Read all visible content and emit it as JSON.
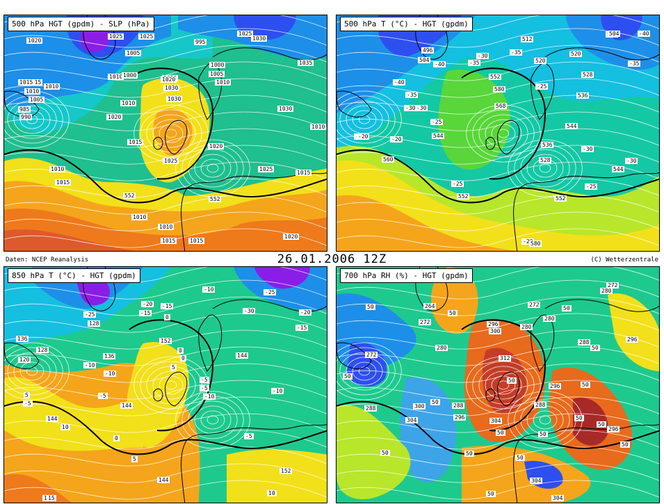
{
  "date_label": "26.01.2006  12Z",
  "source_label": "Daten: NCEP Reanalysis",
  "copyright_label": "(C) Wetterzentrale",
  "panels": [
    {
      "title": "500 hPa HGT (gpdm) - SLP (hPa)",
      "palette": "height",
      "labels": [
        "1020",
        "1025",
        "1005",
        "995",
        "1030",
        "1025",
        "1010",
        "1015",
        "1010",
        "1005",
        "1000",
        "1030",
        "1035",
        "1020",
        "1010",
        "1015",
        "1020",
        "1030",
        "1025",
        "1030",
        "1010",
        "1015",
        "1025",
        "1015",
        "1010",
        "1010",
        "1015",
        "552",
        "552",
        "1010",
        "1015",
        "1020",
        "1025",
        "1030",
        "1020",
        "1000",
        "1005",
        "1010",
        "1015",
        "1010",
        "985",
        "990"
      ],
      "label_pos": [
        [
          45,
          58
        ],
        [
          162,
          52
        ],
        [
          187,
          76
        ],
        [
          286,
          60
        ],
        [
          368,
          55
        ],
        [
          348,
          32
        ],
        [
          162,
          110
        ],
        [
          45,
          118
        ],
        [
          70,
          124
        ],
        [
          48,
          143
        ],
        [
          182,
          108
        ],
        [
          246,
          142
        ],
        [
          435,
          90
        ],
        [
          160,
          168
        ],
        [
          180,
          148
        ],
        [
          190,
          204
        ],
        [
          306,
          210
        ],
        [
          406,
          156
        ],
        [
          241,
          231
        ],
        [
          240,
          112
        ],
        [
          453,
          182
        ],
        [
          432,
          248
        ],
        [
          378,
          243
        ],
        [
          238,
          346
        ],
        [
          196,
          312
        ],
        [
          78,
          243
        ],
        [
          86,
          262
        ],
        [
          184,
          281
        ],
        [
          307,
          286
        ],
        [
          234,
          326
        ],
        [
          278,
          346
        ],
        [
          414,
          340
        ],
        [
          206,
          52
        ],
        [
          242,
          126
        ],
        [
          238,
          114
        ],
        [
          308,
          93
        ],
        [
          307,
          106
        ],
        [
          316,
          118
        ],
        [
          33,
          118
        ],
        [
          42,
          131
        ],
        [
          33,
          157
        ],
        [
          35,
          168
        ]
      ]
    },
    {
      "title": "500 hPa T (°C) - HGT (gpdm)",
      "palette": "temp500",
      "labels": [
        "512",
        "504",
        "496",
        "-40",
        "-35",
        "-30",
        "-25",
        "-20",
        "-30",
        "-35",
        "-40",
        "520",
        "528",
        "536",
        "544",
        "552",
        "560",
        "568",
        "580",
        "552",
        "-25",
        "-20",
        "520",
        "512",
        "504",
        "536",
        "528",
        "544",
        "-30",
        "-30",
        "-35",
        "-40",
        "-25",
        "552",
        "544",
        "-25",
        "-20",
        "580",
        "-35",
        "-30",
        "-25"
      ],
      "label_pos": [
        [
          756,
          56
        ],
        [
          608,
          86
        ],
        [
          613,
          72
        ],
        [
          572,
          118
        ],
        [
          590,
          136
        ],
        [
          588,
          155
        ],
        [
          516,
          196
        ],
        [
          568,
          200
        ],
        [
          692,
          80
        ],
        [
          740,
          75
        ],
        [
          924,
          46
        ],
        [
          826,
          77
        ],
        [
          843,
          107
        ],
        [
          836,
          137
        ],
        [
          820,
          181
        ],
        [
          710,
          110
        ],
        [
          556,
          229
        ],
        [
          718,
          152
        ],
        [
          716,
          128
        ],
        [
          804,
          285
        ],
        [
          656,
          264
        ],
        [
          757,
          347
        ],
        [
          775,
          87
        ],
        [
          878,
          49
        ],
        [
          881,
          34
        ],
        [
          785,
          208
        ],
        [
          782,
          230
        ],
        [
          887,
          243
        ],
        [
          843,
          214
        ],
        [
          906,
          231
        ],
        [
          910,
          91
        ],
        [
          630,
          92
        ],
        [
          626,
          175
        ],
        [
          664,
          282
        ],
        [
          628,
          195
        ],
        [
          848,
          268
        ],
        [
          520,
          196
        ],
        [
          768,
          350
        ],
        [
          680,
          90
        ],
        [
          604,
          155
        ],
        [
          777,
          124
        ]
      ]
    },
    {
      "title": "850 hPa T (°C) - HGT (gpdm)",
      "palette": "temp850",
      "labels": [
        "-25",
        "-20",
        "-15",
        "-10",
        "-5",
        "0",
        "5",
        "10",
        "15",
        "128",
        "136",
        "144",
        "152",
        "120",
        "128",
        "136",
        "144",
        "152",
        "0",
        "-5",
        "-10",
        "-15",
        "-20",
        "-25",
        "-30",
        "5",
        "-10",
        "-5",
        "0",
        "5",
        "10",
        "144",
        "144",
        "-5",
        "0",
        "-10",
        "-15",
        "-5",
        "-10",
        "15"
      ],
      "label_pos": [
        [
          127,
          452
        ],
        [
          210,
          437
        ],
        [
          207,
          450
        ],
        [
          298,
          416
        ],
        [
          148,
          569
        ],
        [
          243,
          456
        ],
        [
          252,
          528
        ],
        [
          94,
          614
        ],
        [
          68,
          716
        ],
        [
          133,
          465
        ],
        [
          30,
          487
        ],
        [
          73,
          602
        ],
        [
          236,
          490
        ],
        [
          33,
          517
        ],
        [
          59,
          503
        ],
        [
          155,
          512
        ],
        [
          346,
          511
        ],
        [
          409,
          677
        ],
        [
          170,
          630
        ],
        [
          358,
          627
        ],
        [
          397,
          562
        ],
        [
          432,
          471
        ],
        [
          437,
          449
        ],
        [
          386,
          420
        ],
        [
          356,
          447
        ],
        [
          196,
          660
        ],
        [
          299,
          570
        ],
        [
          294,
          546
        ],
        [
          266,
          515
        ],
        [
          41,
          568
        ],
        [
          391,
          709
        ],
        [
          180,
          583
        ],
        [
          233,
          690
        ],
        [
          40,
          580
        ],
        [
          262,
          504
        ],
        [
          156,
          537
        ],
        [
          238,
          440
        ],
        [
          294,
          558
        ],
        [
          127,
          525
        ],
        [
          74,
          716
        ]
      ]
    },
    {
      "title": "700 hPa RH (%) - HGT (gpdm)",
      "palette": "rh",
      "labels": [
        "50",
        "50",
        "50",
        "50",
        "50",
        "50",
        "50",
        "50",
        "50",
        "50",
        "50",
        "50",
        "50",
        "264",
        "272",
        "272",
        "272",
        "280",
        "280",
        "280",
        "288",
        "288",
        "288",
        "296",
        "296",
        "296",
        "296",
        "296",
        "300",
        "300",
        "304",
        "304",
        "304",
        "304",
        "312",
        "50",
        "50",
        "272",
        "280",
        "288",
        "50",
        "50"
      ],
      "label_pos": [
        [
          533,
          441
        ],
        [
          500,
          541
        ],
        [
          651,
          450
        ],
        [
          815,
          443
        ],
        [
          856,
          500
        ],
        [
          626,
          578
        ],
        [
          736,
          547
        ],
        [
          842,
          553
        ],
        [
          865,
          610
        ],
        [
          899,
          639
        ],
        [
          554,
          651
        ],
        [
          748,
          658
        ],
        [
          706,
          710
        ],
        [
          616,
          440
        ],
        [
          609,
          463
        ],
        [
          766,
          438
        ],
        [
          532,
          510
        ],
        [
          633,
          500
        ],
        [
          788,
          458
        ],
        [
          870,
          418
        ],
        [
          838,
          492
        ],
        [
          775,
          582
        ],
        [
          531,
          587
        ],
        [
          707,
          466
        ],
        [
          796,
          555
        ],
        [
          907,
          488
        ],
        [
          880,
          617
        ],
        [
          659,
          600
        ],
        [
          710,
          476
        ],
        [
          601,
          584
        ],
        [
          590,
          604
        ],
        [
          711,
          605
        ],
        [
          769,
          691
        ],
        [
          800,
          721
        ],
        [
          724,
          515
        ],
        [
          720,
          622
        ],
        [
          675,
          652
        ],
        [
          879,
          398
        ],
        [
          755,
          470
        ],
        [
          657,
          583
        ],
        [
          781,
          624
        ],
        [
          833,
          601
        ]
      ]
    }
  ]
}
